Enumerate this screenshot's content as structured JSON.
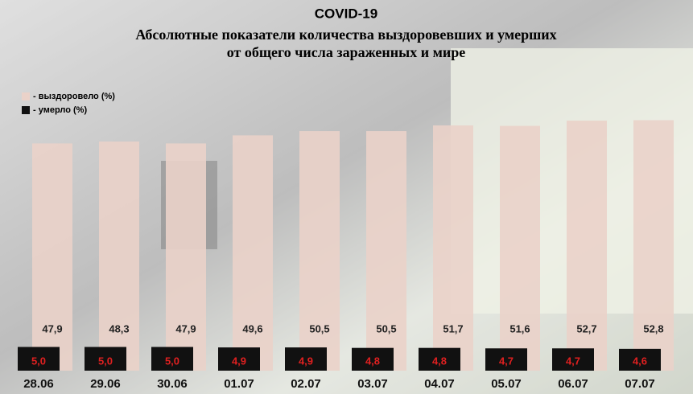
{
  "chart_data": {
    "type": "bar",
    "title": "COVID-19",
    "subtitle": [
      "Абсолютные показатели количества выздоровевших и умерших",
      "от общего числа зараженных  и мире"
    ],
    "categories": [
      "28.06",
      "29.06",
      "30.06",
      "01.07",
      "02.07",
      "03.07",
      "04.07",
      "05.07",
      "06.07",
      "07.07"
    ],
    "series": [
      {
        "name": "- выздоровело (%)",
        "color": "#ead2c9",
        "values": [
          47.9,
          48.3,
          47.9,
          49.6,
          50.5,
          50.5,
          51.7,
          51.6,
          52.7,
          52.8
        ],
        "value_labels": [
          "47,9",
          "48,3",
          "47,9",
          "49,6",
          "50,5",
          "50,5",
          "51,7",
          "51,6",
          "52,7",
          "52,8"
        ]
      },
      {
        "name": "- умерло (%)",
        "color": "#111111",
        "values": [
          5.0,
          5.0,
          5.0,
          4.9,
          4.9,
          4.8,
          4.8,
          4.7,
          4.7,
          4.6
        ],
        "value_labels": [
          "5,0",
          "5,0",
          "5,0",
          "4,9",
          "4,9",
          "4,8",
          "4,8",
          "4,7",
          "4,7",
          "4,6"
        ]
      }
    ],
    "ylim": [
      0,
      60
    ]
  }
}
